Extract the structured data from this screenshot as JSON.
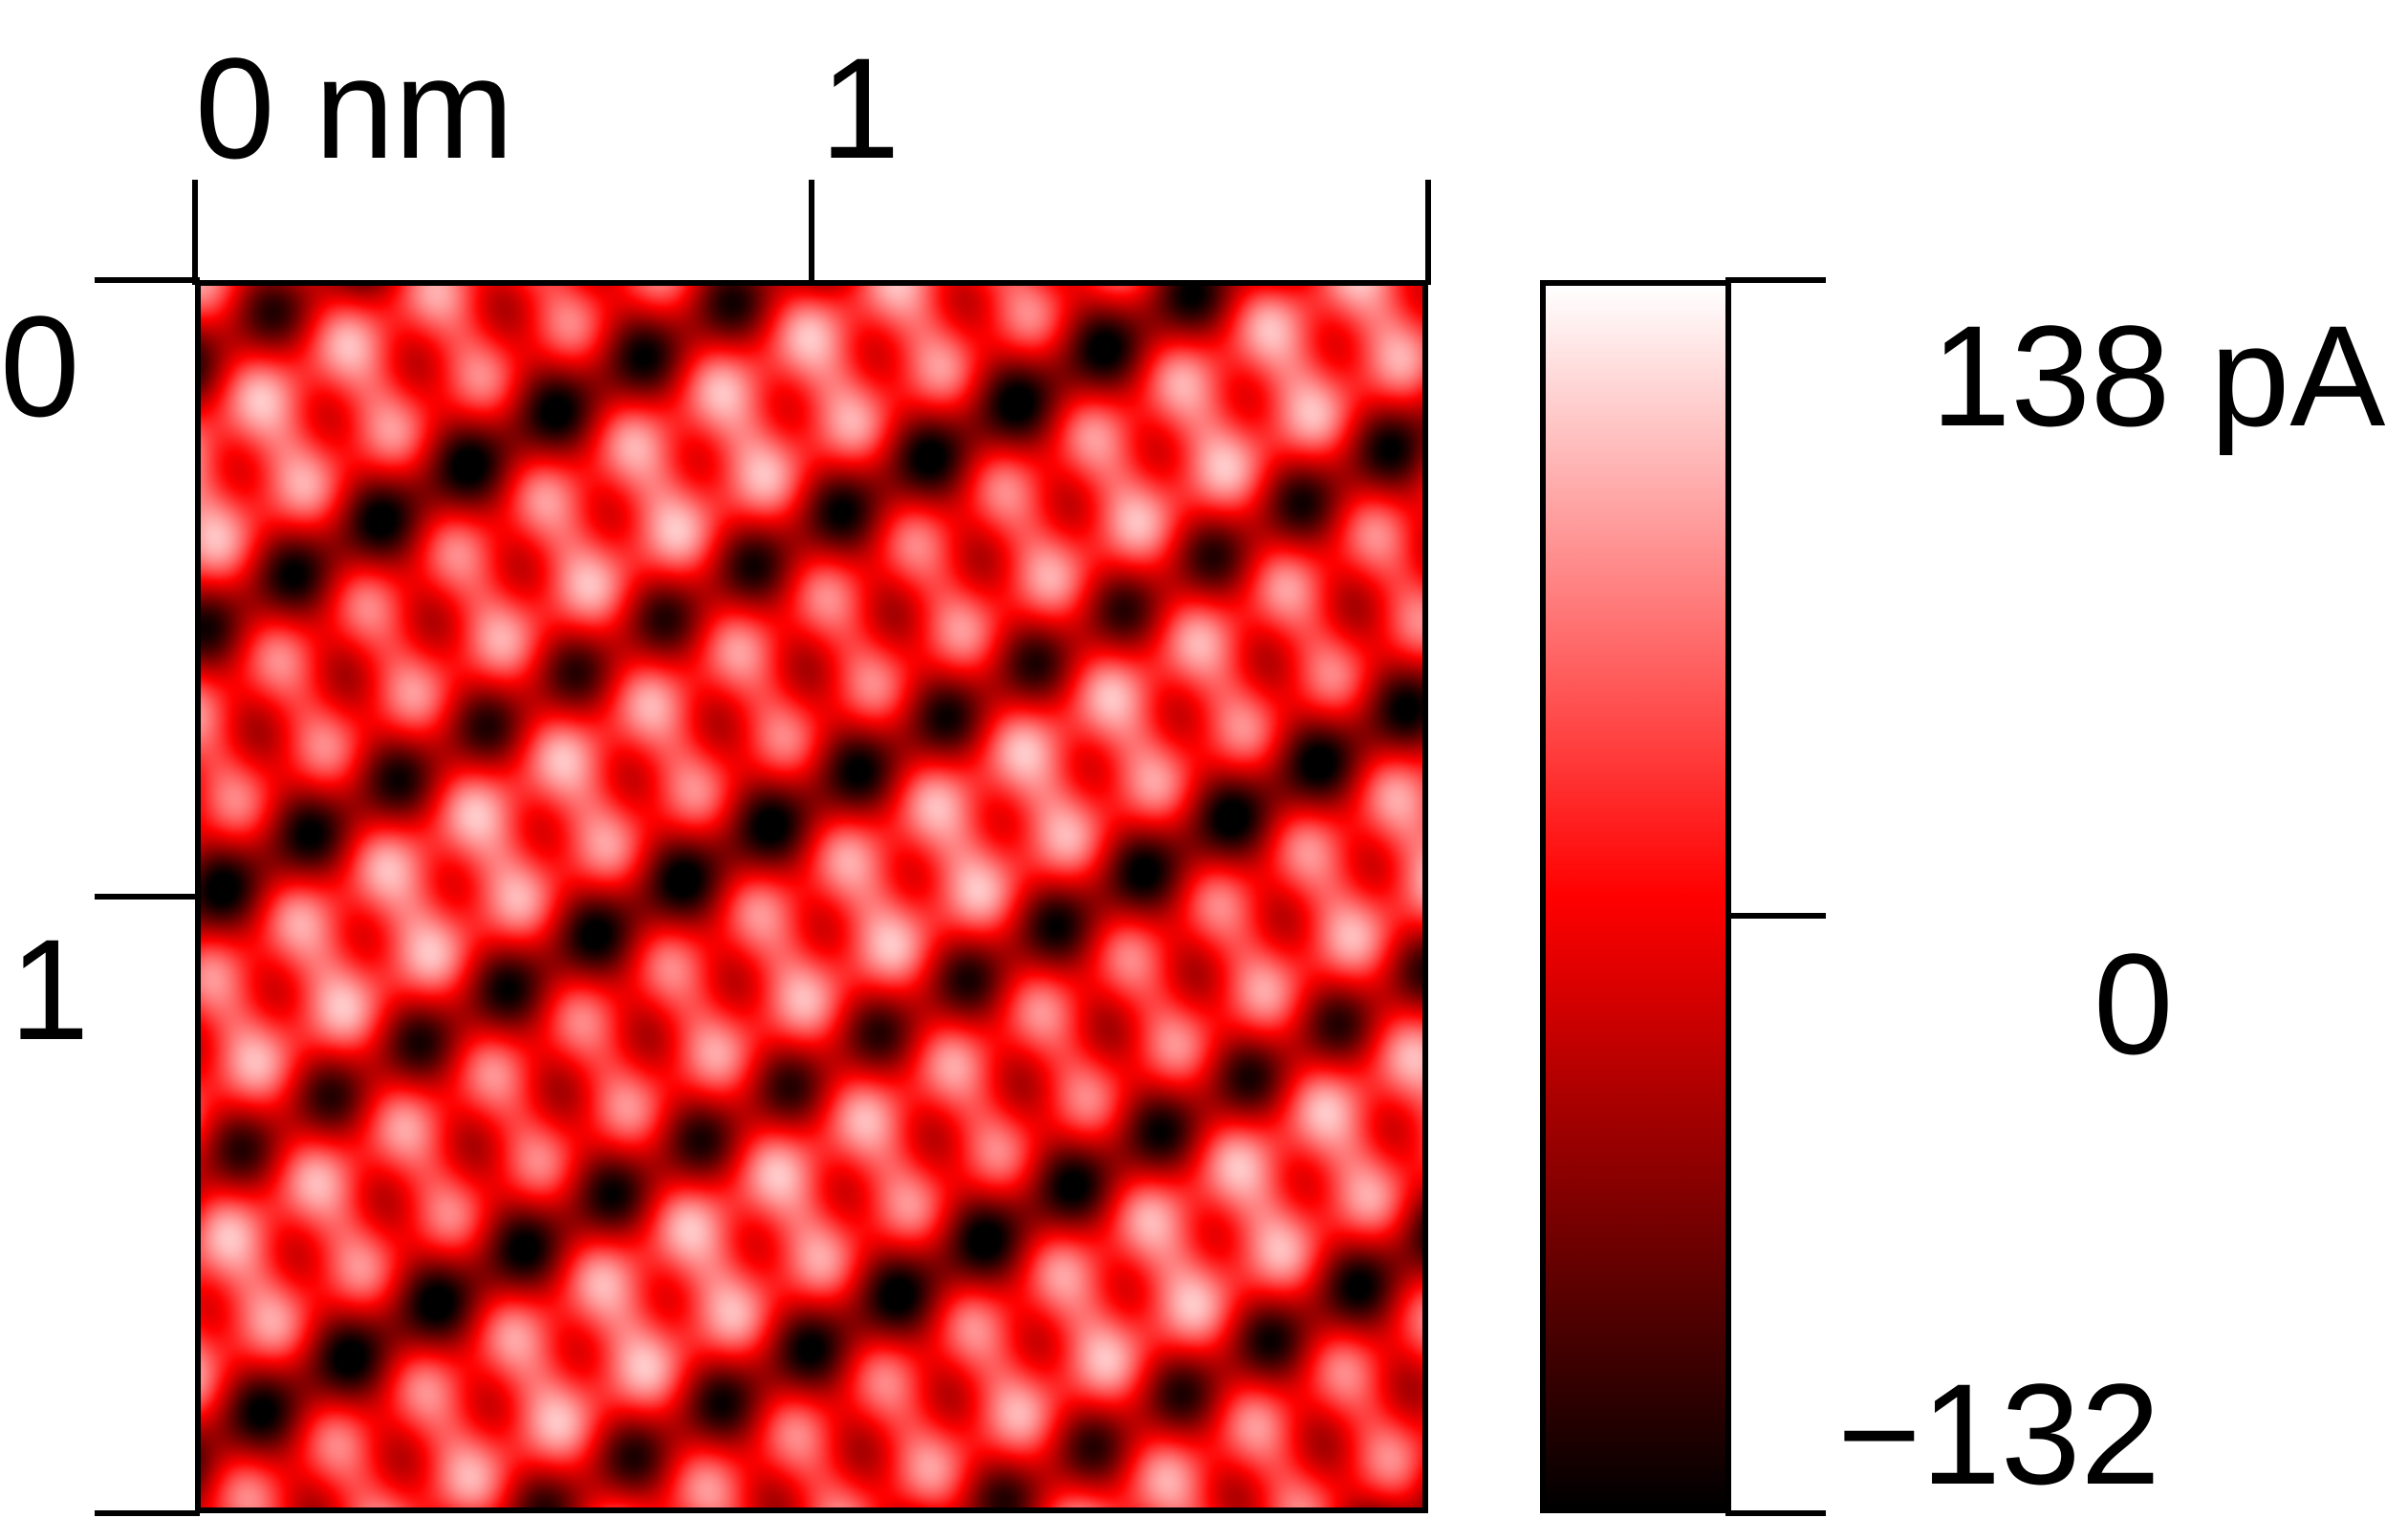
{
  "x_axis": {
    "unit_label": "0 nm",
    "tick_labels": [
      "0 nm",
      "1"
    ]
  },
  "y_axis": {
    "tick_labels": [
      "0",
      "1"
    ]
  },
  "colorbar": {
    "max_label": "138 pA",
    "mid_label": "0",
    "min_label": "−132",
    "max_value": 138,
    "min_value": -132,
    "unit": "pA",
    "colormap": [
      "#000000",
      "#ff0000",
      "#ffffff"
    ]
  },
  "image": {
    "description_colors": {
      "background_mid": "#ff0000",
      "dark": "#000000",
      "bright": "#ffffff"
    }
  }
}
